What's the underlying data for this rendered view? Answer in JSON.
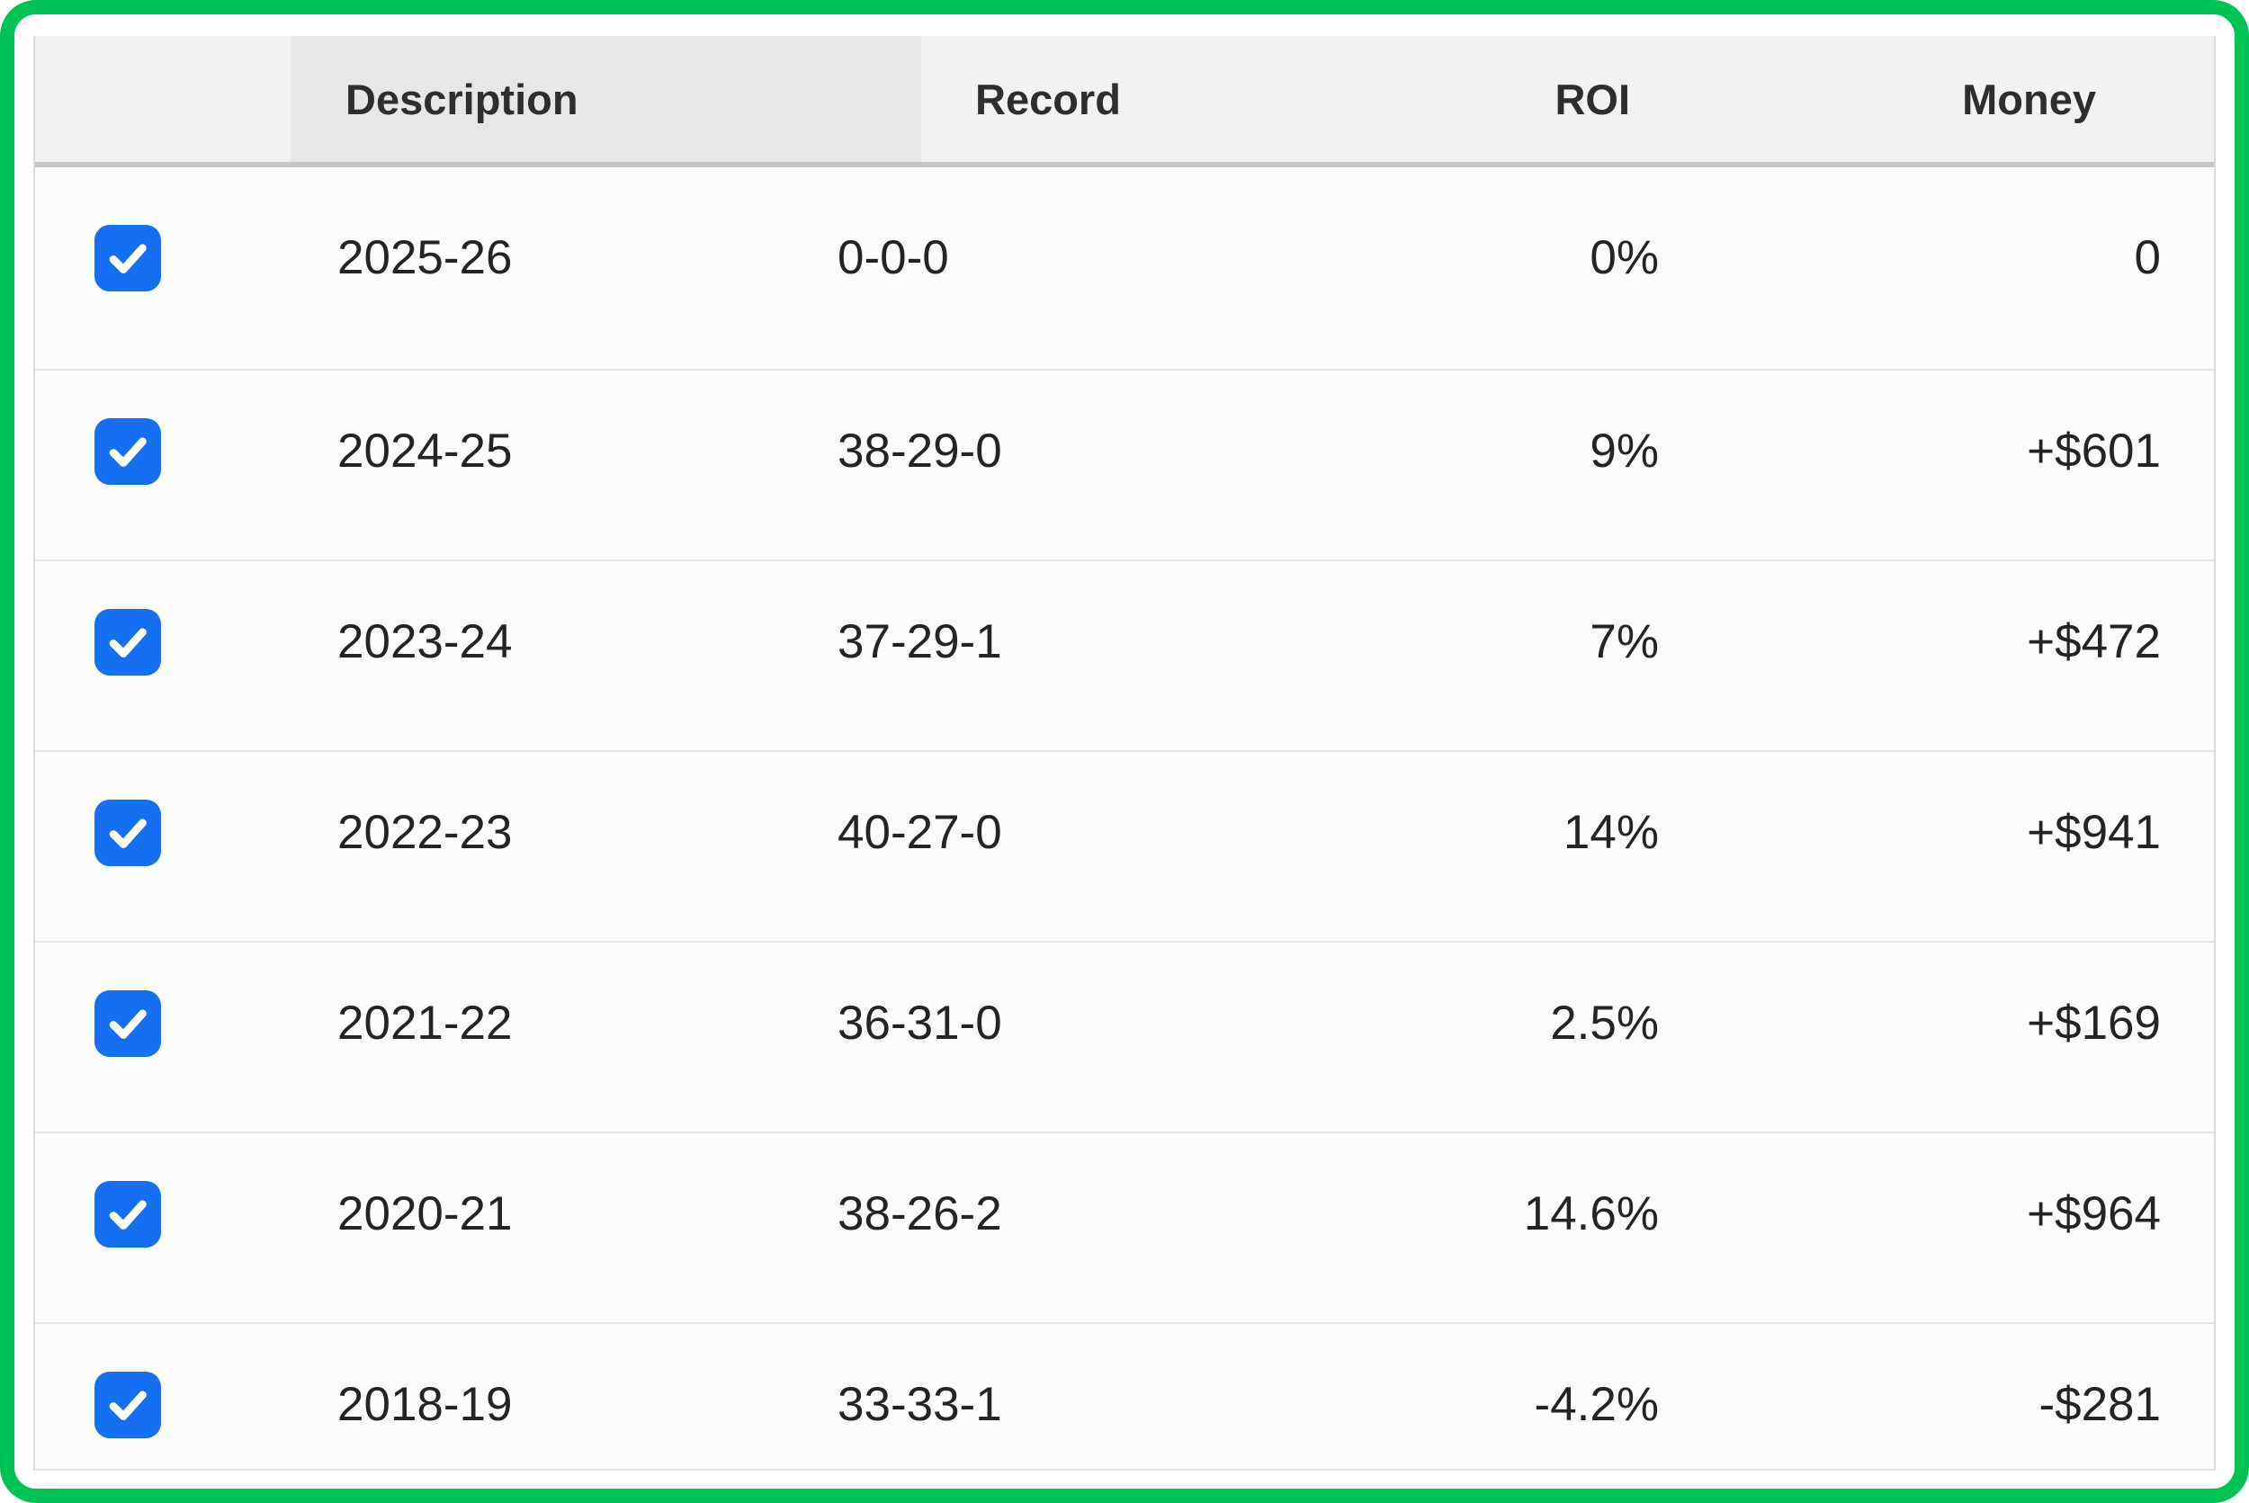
{
  "colors": {
    "frame_green": "#00c355",
    "checkbox_blue": "#1470f0",
    "header_bg": "#f3f2f1",
    "sorted_column_header_bg": "#e9e7e6",
    "header_border": "#c8c6c5",
    "row_separator": "#e6e4e3"
  },
  "table": {
    "columns": [
      {
        "key": "checkbox",
        "label": ""
      },
      {
        "key": "description",
        "label": "Description"
      },
      {
        "key": "record",
        "label": "Record"
      },
      {
        "key": "roi",
        "label": "ROI"
      },
      {
        "key": "money",
        "label": "Money"
      }
    ],
    "rows": [
      {
        "checked": true,
        "description": "2025-26",
        "record": "0-0-0",
        "roi": "0%",
        "money": "0"
      },
      {
        "checked": true,
        "description": "2024-25",
        "record": "38-29-0",
        "roi": "9%",
        "money": "+$601"
      },
      {
        "checked": true,
        "description": "2023-24",
        "record": "37-29-1",
        "roi": "7%",
        "money": "+$472"
      },
      {
        "checked": true,
        "description": "2022-23",
        "record": "40-27-0",
        "roi": "14%",
        "money": "+$941"
      },
      {
        "checked": true,
        "description": "2021-22",
        "record": "36-31-0",
        "roi": "2.5%",
        "money": "+$169"
      },
      {
        "checked": true,
        "description": "2020-21",
        "record": "38-26-2",
        "roi": "14.6%",
        "money": "+$964"
      },
      {
        "checked": true,
        "description": "2018-19",
        "record": "33-33-1",
        "roi": "-4.2%",
        "money": "-$281"
      }
    ]
  }
}
